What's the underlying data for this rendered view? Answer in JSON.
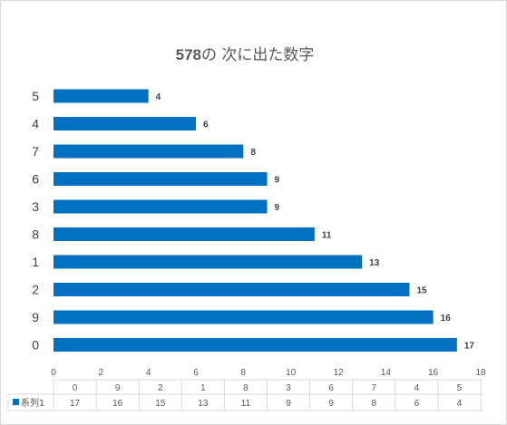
{
  "chart_data": {
    "type": "bar",
    "orientation": "horizontal",
    "title_number": "578",
    "title_text": "の 次に出た数字",
    "categories": [
      "0",
      "9",
      "2",
      "1",
      "8",
      "3",
      "6",
      "7",
      "4",
      "5"
    ],
    "series": [
      {
        "name": "系列1",
        "values": [
          17,
          16,
          15,
          13,
          11,
          9,
          9,
          8,
          6,
          4
        ],
        "color": "#0070c0"
      }
    ],
    "xlim": [
      0,
      18
    ],
    "xticks": [
      "0",
      "2",
      "4",
      "6",
      "8",
      "10",
      "12",
      "14",
      "16",
      "18"
    ],
    "grid": false,
    "data_table": true
  }
}
